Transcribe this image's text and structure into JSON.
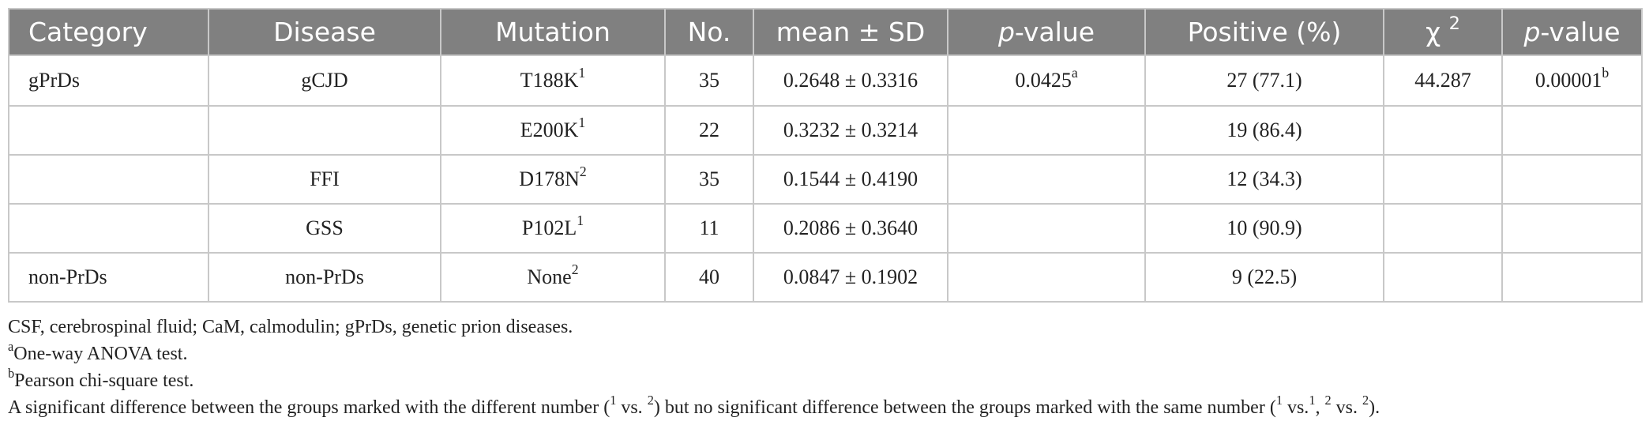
{
  "header": {
    "category": "Category",
    "disease": "Disease",
    "mutation": "Mutation",
    "no": "No.",
    "mean_sd": "mean ± SD",
    "p_value_italic": "p",
    "p_value_rest": "-value",
    "positive": "Positive (%)",
    "chi_symbol": "χ",
    "chi_sup": "2",
    "p2_italic": "p",
    "p2_rest": "-value"
  },
  "rows": [
    {
      "category": "gPrDs",
      "disease": "gCJD",
      "mutation": "T188K",
      "mutation_sup": "1",
      "no": "35",
      "mean_sd": "0.2648 ± 0.3316",
      "p_value": "0.0425",
      "p_value_sup": "a",
      "positive": "27 (77.1)",
      "chi2": "44.287",
      "p2": "0.00001",
      "p2_sup": "b"
    },
    {
      "category": "",
      "disease": "",
      "mutation": "E200K",
      "mutation_sup": "1",
      "no": "22",
      "mean_sd": "0.3232 ± 0.3214",
      "p_value": "",
      "p_value_sup": "",
      "positive": "19 (86.4)",
      "chi2": "",
      "p2": "",
      "p2_sup": ""
    },
    {
      "category": "",
      "disease": "FFI",
      "mutation": "D178N",
      "mutation_sup": "2",
      "no": "35",
      "mean_sd": "0.1544 ± 0.4190",
      "p_value": "",
      "p_value_sup": "",
      "positive": "12 (34.3)",
      "chi2": "",
      "p2": "",
      "p2_sup": ""
    },
    {
      "category": "",
      "disease": "GSS",
      "mutation": "P102L",
      "mutation_sup": "1",
      "no": "11",
      "mean_sd": "0.2086 ± 0.3640",
      "p_value": "",
      "p_value_sup": "",
      "positive": "10 (90.9)",
      "chi2": "",
      "p2": "",
      "p2_sup": ""
    },
    {
      "category": "non-PrDs",
      "disease": "non-PrDs",
      "mutation": "None",
      "mutation_sup": "2",
      "no": "40",
      "mean_sd": "0.0847 ± 0.1902",
      "p_value": "",
      "p_value_sup": "",
      "positive": "9 (22.5)",
      "chi2": "",
      "p2": "",
      "p2_sup": ""
    }
  ],
  "notes": {
    "abbrev": "CSF, cerebrospinal fluid; CaM, calmodulin; gPrDs, genetic prion diseases.",
    "a_mark": "a",
    "a_text": "One-way ANOVA test.",
    "b_mark": "b",
    "b_text": "Pearson chi-square test.",
    "sig_part1": "A significant difference between the groups marked with the different number (",
    "sig_sup1": "1",
    "sig_part2": " vs. ",
    "sig_sup2": "2",
    "sig_part3": ") but no significant difference between the groups marked with the same number (",
    "sig_sup3": "1",
    "sig_part4": " vs.",
    "sig_sup4": "1",
    "sig_part5": ", ",
    "sig_sup5": "2",
    "sig_part6": " vs. ",
    "sig_sup6": "2",
    "sig_part7": ")."
  }
}
